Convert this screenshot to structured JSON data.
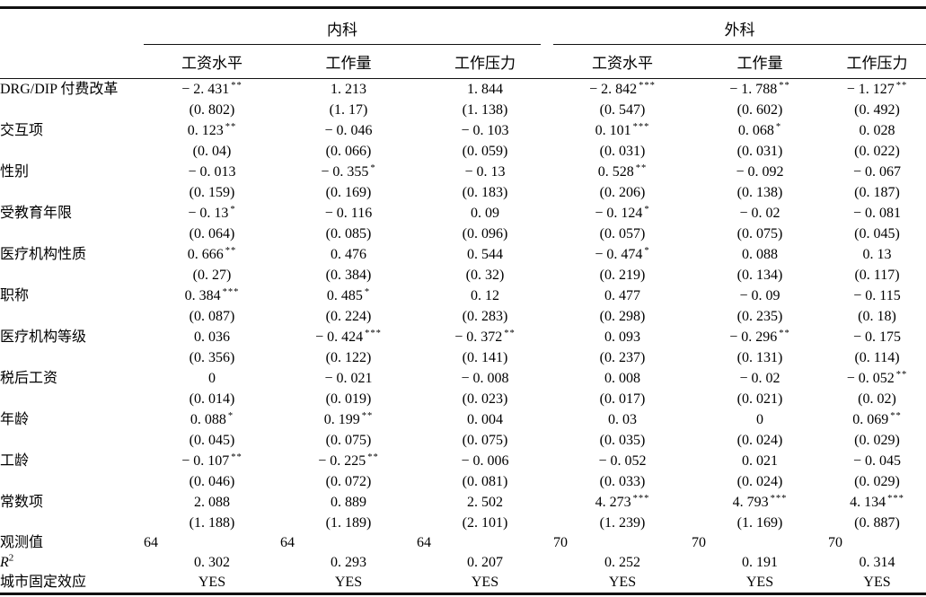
{
  "header": {
    "groups": [
      {
        "label": "内科"
      },
      {
        "label": "外科"
      }
    ],
    "sub_columns": [
      "工资水平",
      "工作量",
      "工作压力",
      "工资水平",
      "工作量",
      "工作压力"
    ]
  },
  "table": {
    "rows": [
      {
        "label": "DRG/DIP 付费改革",
        "est": [
          "− 2. 431",
          "1. 213",
          "1. 844",
          "− 2. 842",
          "− 1. 788",
          "− 1. 127"
        ],
        "stars": [
          "**",
          "",
          "",
          "***",
          "**",
          "**"
        ],
        "se": [
          "(0. 802)",
          "(1. 17)",
          "(1. 138)",
          "(0. 547)",
          "(0. 602)",
          "(0. 492)"
        ]
      },
      {
        "label": "交互项",
        "est": [
          "0. 123",
          "− 0. 046",
          "− 0. 103",
          "0. 101",
          "0. 068",
          "0. 028"
        ],
        "stars": [
          "**",
          "",
          "",
          "***",
          "*",
          ""
        ],
        "se": [
          "(0. 04)",
          "(0. 066)",
          "(0. 059)",
          "(0. 031)",
          "(0. 031)",
          "(0. 022)"
        ]
      },
      {
        "label": "性别",
        "est": [
          "− 0. 013",
          "− 0. 355",
          "− 0. 13",
          "0. 528",
          "− 0. 092",
          "− 0. 067"
        ],
        "stars": [
          "",
          "*",
          "",
          "**",
          "",
          ""
        ],
        "se": [
          "(0. 159)",
          "(0. 169)",
          "(0. 183)",
          "(0. 206)",
          "(0. 138)",
          "(0. 187)"
        ]
      },
      {
        "label": "受教育年限",
        "est": [
          "− 0. 13",
          "− 0. 116",
          "0. 09",
          "− 0. 124",
          "− 0. 02",
          "− 0. 081"
        ],
        "stars": [
          "*",
          "",
          "",
          "*",
          "",
          ""
        ],
        "se": [
          "(0. 064)",
          "(0. 085)",
          "(0. 096)",
          "(0. 057)",
          "(0. 075)",
          "(0. 045)"
        ]
      },
      {
        "label": "医疗机构性质",
        "est": [
          "0. 666",
          "0. 476",
          "0. 544",
          "− 0. 474",
          "0. 088",
          "0. 13"
        ],
        "stars": [
          "**",
          "",
          "",
          "*",
          "",
          ""
        ],
        "se": [
          "(0. 27)",
          "(0. 384)",
          "(0. 32)",
          "(0. 219)",
          "(0. 134)",
          "(0. 117)"
        ]
      },
      {
        "label": "职称",
        "est": [
          "0. 384",
          "0. 485",
          "0. 12",
          "0. 477",
          "− 0. 09",
          "− 0. 115"
        ],
        "stars": [
          "***",
          "*",
          "",
          "",
          "",
          ""
        ],
        "se": [
          "(0. 087)",
          "(0. 224)",
          "(0. 283)",
          "(0. 298)",
          "(0. 235)",
          "(0. 18)"
        ]
      },
      {
        "label": "医疗机构等级",
        "est": [
          "0. 036",
          "− 0. 424",
          "− 0. 372",
          "0. 093",
          "− 0. 296",
          "− 0. 175"
        ],
        "stars": [
          "",
          "***",
          "**",
          "",
          "**",
          ""
        ],
        "se": [
          "(0. 356)",
          "(0. 122)",
          "(0. 141)",
          "(0. 237)",
          "(0. 131)",
          "(0. 114)"
        ]
      },
      {
        "label": "税后工资",
        "est": [
          "0",
          "− 0. 021",
          "− 0. 008",
          "0. 008",
          "− 0. 02",
          "− 0. 052"
        ],
        "stars": [
          "",
          "",
          "",
          "",
          "",
          "**"
        ],
        "se": [
          "(0. 014)",
          "(0. 019)",
          "(0. 023)",
          "(0. 017)",
          "(0. 021)",
          "(0. 02)"
        ]
      },
      {
        "label": "年龄",
        "est": [
          "0. 088",
          "0. 199",
          "0. 004",
          "0. 03",
          "0",
          "0. 069"
        ],
        "stars": [
          "*",
          "**",
          "",
          "",
          "",
          "**"
        ],
        "se": [
          "(0. 045)",
          "(0. 075)",
          "(0. 075)",
          "(0. 035)",
          "(0. 024)",
          "(0. 029)"
        ]
      },
      {
        "label": "工龄",
        "est": [
          "− 0. 107",
          "− 0. 225",
          "− 0. 006",
          "− 0. 052",
          "0. 021",
          "− 0. 045"
        ],
        "stars": [
          "**",
          "**",
          "",
          "",
          "",
          ""
        ],
        "se": [
          "(0. 046)",
          "(0. 072)",
          "(0. 081)",
          "(0. 033)",
          "(0. 024)",
          "(0. 029)"
        ]
      },
      {
        "label": "常数项",
        "est": [
          "2. 088",
          "0. 889",
          "2. 502",
          "4. 273",
          "4. 793",
          "4. 134"
        ],
        "stars": [
          "",
          "",
          "",
          "***",
          "***",
          "***"
        ],
        "se": [
          "(1. 188)",
          "(1. 189)",
          "(2. 101)",
          "(1. 239)",
          "(1. 169)",
          "(0. 887)"
        ]
      }
    ],
    "stat_rows": [
      {
        "label": "观测值",
        "values": [
          "64",
          "64",
          "64",
          "70",
          "70",
          "70"
        ],
        "align": "left"
      },
      {
        "label": "R",
        "label_sup": "2",
        "label_italic": true,
        "values": [
          "0. 302",
          "0. 293",
          "0. 207",
          "0. 252",
          "0. 191",
          "0. 314"
        ],
        "align": "center"
      },
      {
        "label": "城市固定效应",
        "values": [
          "YES",
          "YES",
          "YES",
          "YES",
          "YES",
          "YES"
        ],
        "align": "center"
      }
    ]
  }
}
